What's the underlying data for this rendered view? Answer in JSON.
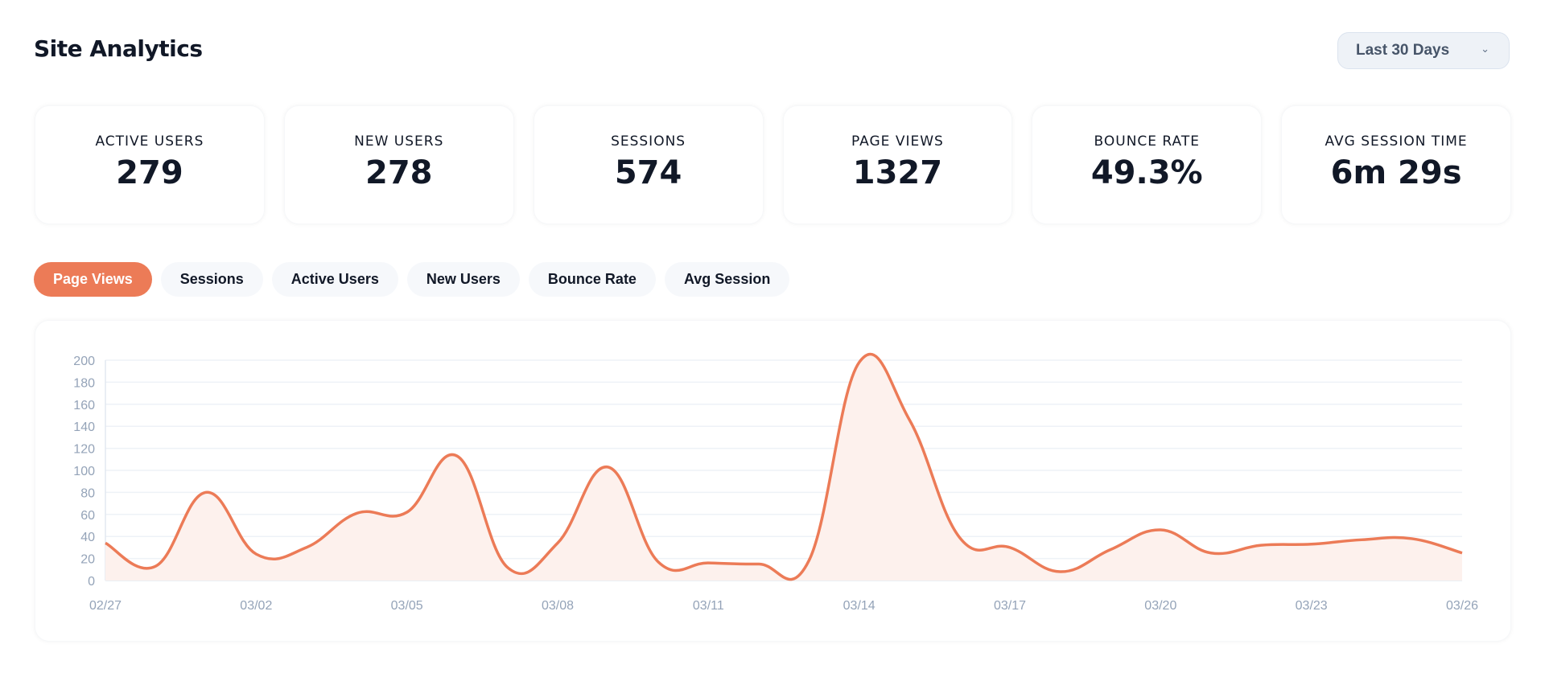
{
  "header": {
    "title": "Site Analytics",
    "range_label": "Last 30 Days",
    "range_icon": "chevron-down-icon"
  },
  "stats": [
    {
      "label": "ACTIVE USERS",
      "value": "279"
    },
    {
      "label": "NEW USERS",
      "value": "278"
    },
    {
      "label": "SESSIONS",
      "value": "574"
    },
    {
      "label": "PAGE VIEWS",
      "value": "1327"
    },
    {
      "label": "BOUNCE RATE",
      "value": "49.3%"
    },
    {
      "label": "AVG SESSION TIME",
      "value": "6m 29s"
    }
  ],
  "tabs": [
    {
      "label": "Page Views",
      "active": true
    },
    {
      "label": "Sessions"
    },
    {
      "label": "Active Users"
    },
    {
      "label": "New Users"
    },
    {
      "label": "Bounce Rate"
    },
    {
      "label": "Avg Session"
    }
  ],
  "colors": {
    "accent": "#ec7b57",
    "fill": "#fdf1ed",
    "grid": "#eef2f7",
    "tick": "#94a3b8"
  },
  "chart_data": {
    "type": "area",
    "x": [
      "02/27",
      "02/28",
      "03/01",
      "03/02",
      "03/03",
      "03/04",
      "03/05",
      "03/06",
      "03/07",
      "03/08",
      "03/09",
      "03/10",
      "03/11",
      "03/12",
      "03/13",
      "03/14",
      "03/15",
      "03/16",
      "03/17",
      "03/18",
      "03/19",
      "03/20",
      "03/21",
      "03/22",
      "03/23",
      "03/24",
      "03/25",
      "03/26"
    ],
    "values": [
      34,
      13,
      80,
      24,
      30,
      61,
      62,
      113,
      12,
      34,
      103,
      17,
      16,
      15,
      18,
      198,
      146,
      39,
      30,
      8,
      28,
      46,
      25,
      32,
      33,
      37,
      38,
      25
    ],
    "x_tick_labels": [
      "02/27",
      "03/02",
      "03/05",
      "03/08",
      "03/11",
      "03/14",
      "03/17",
      "03/20",
      "03/23",
      "03/26"
    ],
    "y_tick_labels": [
      "0",
      "20",
      "40",
      "60",
      "80",
      "100",
      "120",
      "140",
      "160",
      "180",
      "200"
    ],
    "ylim": [
      0,
      200
    ],
    "grid": true,
    "legend": "none"
  }
}
